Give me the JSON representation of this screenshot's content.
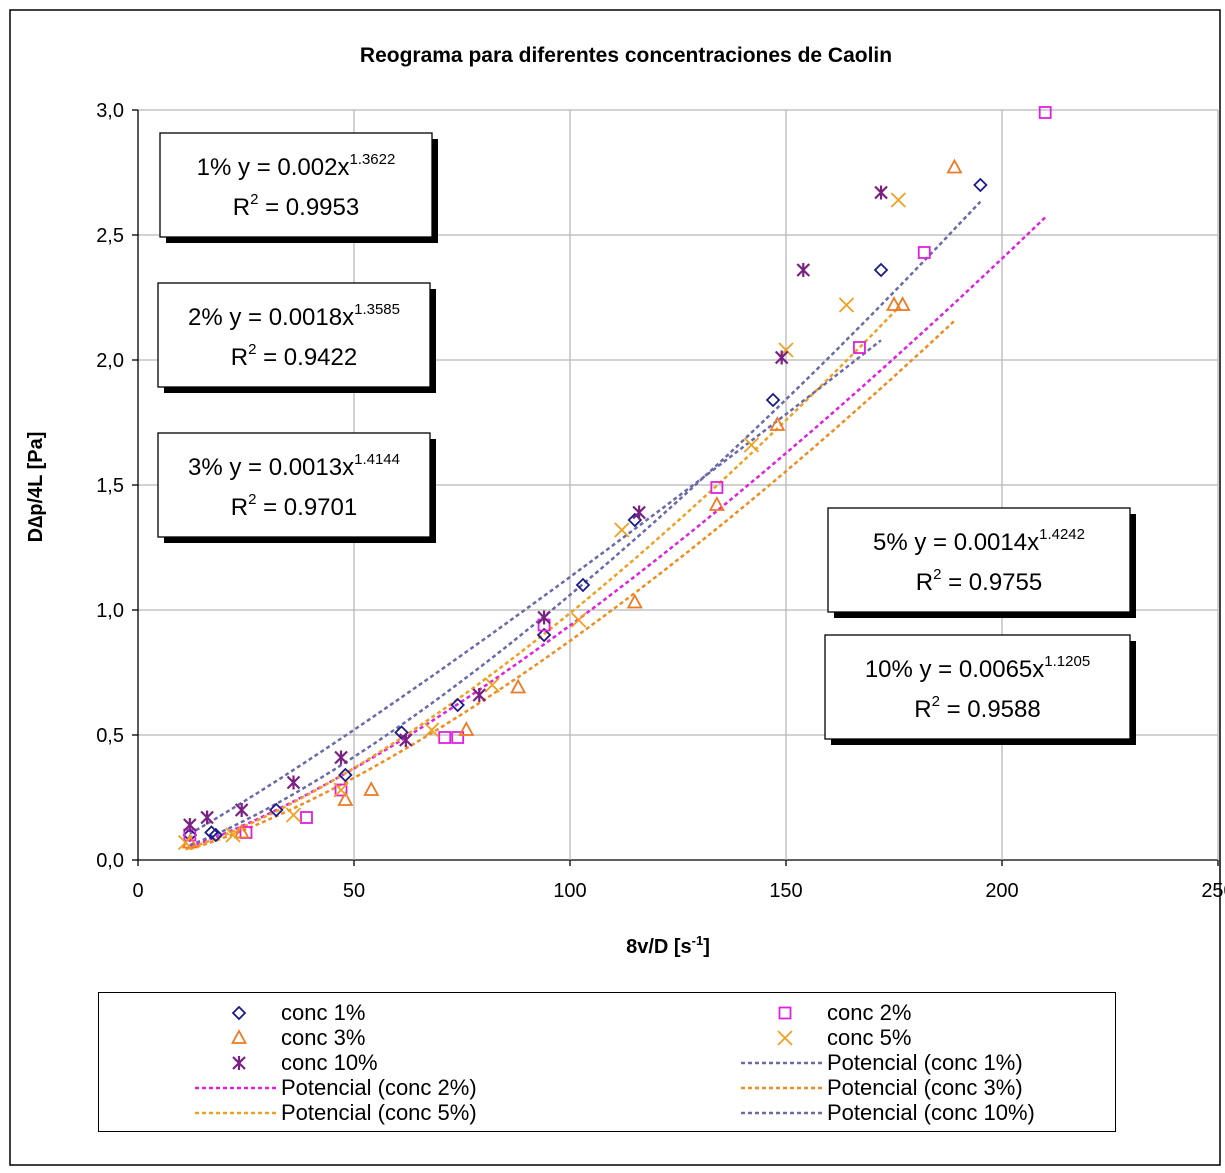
{
  "chart_data": {
    "type": "scatter",
    "title": "Reograma para diferentes concentraciones de Caolin",
    "xlabel_main": "8v/D [s",
    "xlabel_sup": "-1",
    "xlabel_end": "]",
    "ylabel": "D∆p/4L [Pa]",
    "xlim": [
      0,
      250
    ],
    "ylim": [
      0,
      3
    ],
    "xticks": [
      0,
      50,
      100,
      150,
      200,
      250
    ],
    "yticks": [
      "0,0",
      "0,5",
      "1,0",
      "1,5",
      "2,0",
      "2,5",
      "3,0"
    ],
    "grid": true,
    "series": [
      {
        "name": "conc 1%",
        "marker": "diamond",
        "color": "#1a1a8c",
        "x": [
          12,
          17,
          18,
          32,
          48,
          61,
          74,
          94,
          103,
          115,
          147,
          172,
          195
        ],
        "y": [
          0.1,
          0.11,
          0.1,
          0.2,
          0.34,
          0.51,
          0.62,
          0.9,
          1.1,
          1.36,
          1.84,
          2.36,
          2.7
        ]
      },
      {
        "name": "conc 2%",
        "marker": "square",
        "color": "#e020e0",
        "x": [
          12,
          25,
          39,
          47,
          71,
          74,
          94,
          134,
          167,
          182,
          210
        ],
        "y": [
          0.1,
          0.11,
          0.17,
          0.28,
          0.49,
          0.49,
          0.94,
          1.49,
          2.05,
          2.43,
          2.99
        ]
      },
      {
        "name": "conc 3%",
        "marker": "triangle",
        "color": "#f07820",
        "x": [
          12,
          24,
          48,
          54,
          76,
          88,
          115,
          134,
          148,
          175,
          177,
          189
        ],
        "y": [
          0.07,
          0.11,
          0.24,
          0.28,
          0.52,
          0.69,
          1.03,
          1.42,
          1.74,
          2.22,
          2.22,
          2.77
        ]
      },
      {
        "name": "conc 5%",
        "marker": "x",
        "color": "#f0a020",
        "x": [
          11,
          22,
          36,
          47,
          68,
          82,
          102,
          112,
          142,
          150,
          164,
          176
        ],
        "y": [
          0.07,
          0.1,
          0.18,
          0.28,
          0.52,
          0.7,
          0.96,
          1.32,
          1.66,
          2.04,
          2.22,
          2.64
        ]
      },
      {
        "name": "conc 10%",
        "marker": "asterisk",
        "color": "#7a2082",
        "x": [
          12,
          16,
          24,
          36,
          47,
          62,
          79,
          94,
          116,
          149,
          154,
          172
        ],
        "y": [
          0.14,
          0.17,
          0.2,
          0.31,
          0.41,
          0.48,
          0.66,
          0.97,
          1.39,
          2.01,
          2.36,
          2.67
        ]
      }
    ],
    "trendlines": [
      {
        "name": "Potencial (conc 1%)",
        "color": "#6a6aa8",
        "a": 0.002,
        "b": 1.3622,
        "x_range": [
          12,
          195
        ]
      },
      {
        "name": "Potencial (conc 2%)",
        "color": "#e020e0",
        "a": 0.0018,
        "b": 1.3585,
        "x_range": [
          12,
          210
        ]
      },
      {
        "name": "Potencial (conc 3%)",
        "color": "#f08c20",
        "a": 0.0013,
        "b": 1.4144,
        "x_range": [
          12,
          189
        ]
      },
      {
        "name": "Potencial (conc 5%)",
        "color": "#f0a020",
        "a": 0.0014,
        "b": 1.4242,
        "x_range": [
          11,
          176
        ]
      },
      {
        "name": "Potencial (conc 10%)",
        "color": "#6a6aa8",
        "a": 0.0065,
        "b": 1.1205,
        "x_range": [
          12,
          172
        ]
      }
    ],
    "annotations": [
      {
        "prefix": "1% y = 0.002x",
        "exp": "1.3622",
        "r2_prefix": "R",
        "r2_value": " = 0.9953"
      },
      {
        "prefix": "2% y = 0.0018x",
        "exp": "1.3585",
        "r2_prefix": "R",
        "r2_value": " = 0.9422"
      },
      {
        "prefix": "3% y = 0.0013x",
        "exp": "1.4144",
        "r2_prefix": "R",
        "r2_value": " = 0.9701"
      },
      {
        "prefix": "5% y = 0.0014x",
        "exp": "1.4242",
        "r2_prefix": "R",
        "r2_value": " = 0.9755"
      },
      {
        "prefix": "10% y = 0.0065x",
        "exp": "1.1205",
        "r2_prefix": "R",
        "r2_value": " = 0.9588"
      }
    ],
    "legend": {
      "placement": "bottom",
      "entries": [
        {
          "label": "conc 1%",
          "kind": "marker",
          "series": 0
        },
        {
          "label": "conc 2%",
          "kind": "marker",
          "series": 1
        },
        {
          "label": "conc 3%",
          "kind": "marker",
          "series": 2
        },
        {
          "label": "conc 5%",
          "kind": "marker",
          "series": 3
        },
        {
          "label": "conc 10%",
          "kind": "marker",
          "series": 4
        },
        {
          "label": "Potencial (conc 1%)",
          "kind": "line",
          "trend": 0
        },
        {
          "label": "Potencial (conc 2%)",
          "kind": "line",
          "trend": 1
        },
        {
          "label": "Potencial (conc 3%)",
          "kind": "line",
          "trend": 2
        },
        {
          "label": "Potencial (conc 5%)",
          "kind": "line",
          "trend": 3
        },
        {
          "label": "Potencial (conc 10%)",
          "kind": "line",
          "trend": 4
        }
      ]
    }
  }
}
